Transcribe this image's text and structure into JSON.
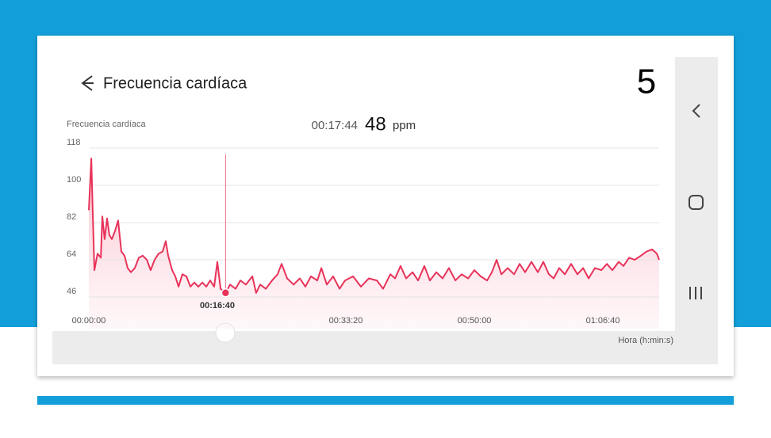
{
  "header": {
    "title": "Frecuencia cardíaca",
    "badge": "5"
  },
  "chart_data": {
    "type": "line",
    "title": "Frecuencia cardíaca",
    "x_label": "Hora (h:min:s)",
    "x": [
      0,
      19,
      31,
      43,
      68,
      93,
      105,
      123,
      142,
      160,
      179,
      204,
      228,
      253,
      278,
      302,
      327,
      358,
      389,
      420,
      451,
      481,
      512,
      543,
      574,
      599,
      617,
      648,
      673,
      698,
      728,
      759,
      790,
      821,
      852,
      883,
      914,
      944,
      975,
      1000,
      1025,
      1064,
      1099,
      1142,
      1179,
      1222,
      1272,
      1302,
      1333,
      1377,
      1426,
      1469,
      1500,
      1543,
      1593,
      1642,
      1685,
      1728,
      1778,
      1809,
      1852,
      1901,
      1951,
      1994,
      2056,
      2117,
      2179,
      2241,
      2290,
      2346,
      2383,
      2426,
      2469,
      2519,
      2562,
      2611,
      2654,
      2704,
      2753,
      2802,
      2852,
      2901,
      2951,
      3000,
      3049,
      3099,
      3136,
      3173,
      3210,
      3259,
      3309,
      3352,
      3395,
      3444,
      3494,
      3537,
      3580,
      3617,
      3660,
      3704,
      3753,
      3802,
      3846,
      3889,
      3938,
      3988,
      4031,
      4074,
      4123,
      4160,
      4204,
      4247,
      4296,
      4340,
      4383,
      4420,
      4438
    ],
    "series": [
      {
        "color": "#e8335a",
        "values": [
          88,
          113,
          86,
          59,
          67,
          65,
          85,
          74,
          84,
          76,
          74,
          78,
          83,
          68,
          66,
          60,
          58,
          60,
          65,
          66,
          64,
          59,
          64,
          67,
          68,
          73,
          66,
          59,
          56,
          51,
          57,
          56,
          51,
          53,
          51,
          53,
          51,
          54,
          51,
          63,
          50,
          48,
          52,
          50,
          54,
          52,
          56,
          48,
          52,
          50,
          54,
          57,
          62,
          55,
          52,
          55,
          51,
          56,
          54,
          60,
          52,
          56,
          50,
          54,
          56,
          51,
          55,
          54,
          50,
          57,
          55,
          61,
          55,
          58,
          54,
          61,
          54,
          58,
          55,
          60,
          54,
          57,
          55,
          59,
          56,
          54,
          58,
          64,
          57,
          60,
          57,
          62,
          58,
          63,
          58,
          63,
          57,
          55,
          60,
          57,
          62,
          57,
          60,
          55,
          60,
          59,
          62,
          59,
          63,
          61,
          65,
          64,
          66,
          68,
          69,
          67,
          64
        ]
      }
    ],
    "xlim": [
      0,
      4438
    ],
    "ylim": [
      46,
      118
    ],
    "yticks": [
      46,
      64,
      82,
      100,
      118
    ],
    "xticks": [
      {
        "value": 0,
        "label": "00:00:00"
      },
      {
        "value": 2000,
        "label": "00:33:20"
      },
      {
        "value": 3000,
        "label": "00:50:00"
      },
      {
        "value": 4000,
        "label": "01:06:40"
      }
    ],
    "grid": true,
    "cursor": {
      "x": {
        "value": 1064,
        "label": "00:17:44"
      },
      "value": 48,
      "unit": "ppm",
      "tick": {
        "value": 1000,
        "label": "00:16:40"
      }
    }
  }
}
